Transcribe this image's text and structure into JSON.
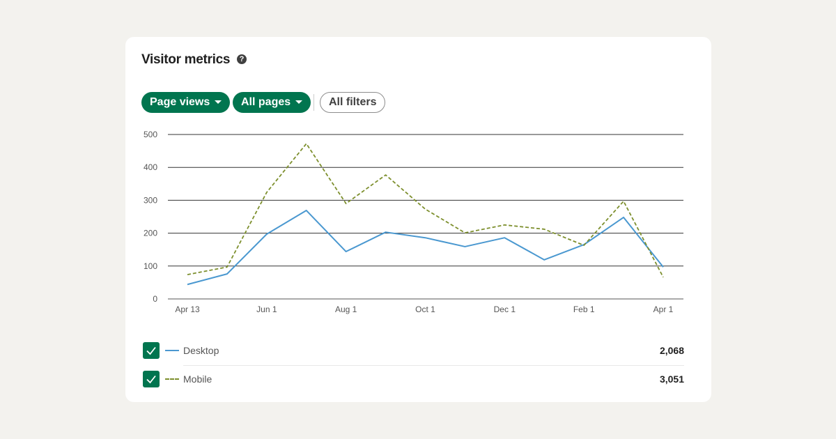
{
  "card": {
    "title": "Visitor metrics",
    "help_icon": "question-circle-icon",
    "filters": [
      {
        "label": "Page views",
        "style": "filled-dropdown"
      },
      {
        "label": "All pages",
        "style": "filled-dropdown"
      },
      {
        "label": "All filters",
        "style": "outline"
      }
    ]
  },
  "colors": {
    "accent": "#01754f",
    "desktop": "#4a98d0",
    "mobile": "#7d8f2d"
  },
  "chart_data": {
    "type": "line",
    "x_tick_labels": [
      "Apr 13",
      "Jun 1",
      "Aug 1",
      "Oct 1",
      "Dec 1",
      "Feb 1",
      "Apr 1"
    ],
    "y_ticks": [
      0,
      100,
      200,
      300,
      400,
      500
    ],
    "ylim": [
      0,
      500
    ],
    "grid": true,
    "legend_placement": "bottom",
    "series": [
      {
        "name": "Desktop",
        "style": "solid",
        "total": "2,068",
        "values": [
          44,
          76,
          197,
          269,
          144,
          203,
          186,
          159,
          186,
          119,
          165,
          248,
          97
        ]
      },
      {
        "name": "Mobile",
        "style": "dashed",
        "total": "3,051",
        "values": [
          74,
          97,
          324,
          472,
          290,
          377,
          273,
          201,
          225,
          212,
          163,
          297,
          66
        ]
      }
    ]
  }
}
